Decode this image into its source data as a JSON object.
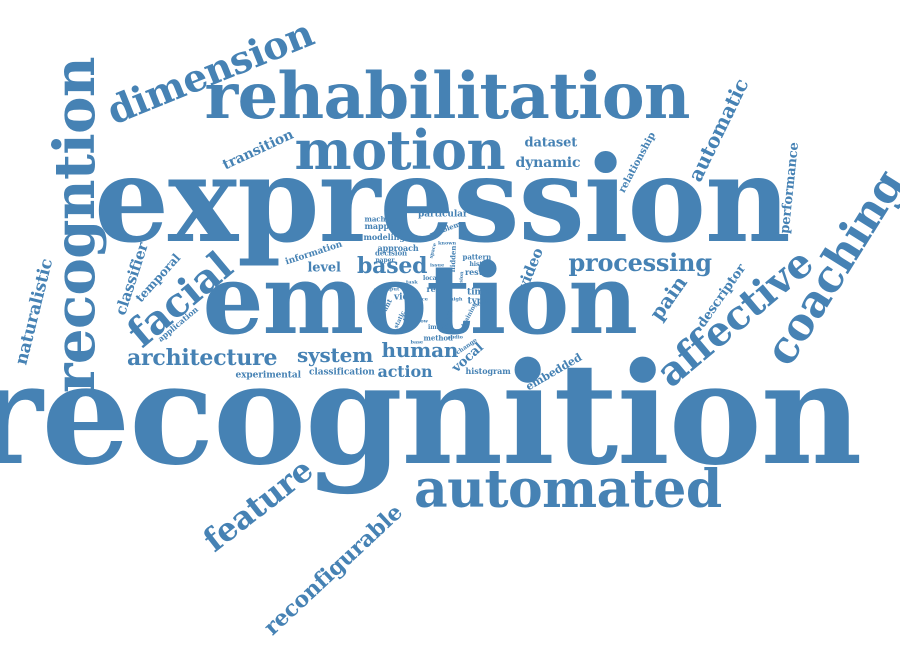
{
  "color": "#4682b4",
  "words": [
    {
      "text": "recognition"
    },
    {
      "text": "expression"
    },
    {
      "text": "emotion"
    },
    {
      "text": "rehabilitation"
    },
    {
      "text": "automated"
    },
    {
      "text": "motion"
    },
    {
      "text": "recogntion"
    },
    {
      "text": "coaching"
    },
    {
      "text": "affective"
    },
    {
      "text": "dimension"
    },
    {
      "text": "facial"
    },
    {
      "text": "feature"
    },
    {
      "text": "reconfigurable"
    },
    {
      "text": "processing"
    },
    {
      "text": "architecture"
    },
    {
      "text": "human"
    },
    {
      "text": "system"
    },
    {
      "text": "based"
    },
    {
      "text": "automatic"
    },
    {
      "text": "pain"
    },
    {
      "text": "action"
    },
    {
      "text": "naturalistic"
    },
    {
      "text": "classifier"
    },
    {
      "text": "dynamic"
    },
    {
      "text": "video"
    },
    {
      "text": "descriptor"
    },
    {
      "text": "performance"
    },
    {
      "text": "transition"
    },
    {
      "text": "dataset"
    },
    {
      "text": "temporal"
    },
    {
      "text": "vocal"
    },
    {
      "text": "level"
    },
    {
      "text": "embedded"
    },
    {
      "text": "relationship"
    },
    {
      "text": "classification"
    },
    {
      "text": "experimental"
    },
    {
      "text": "application"
    },
    {
      "text": "information"
    },
    {
      "text": "particular"
    },
    {
      "text": "mapping"
    },
    {
      "text": "modeling"
    },
    {
      "text": "machine"
    },
    {
      "text": "approach"
    },
    {
      "text": "decision"
    },
    {
      "text": "problem"
    },
    {
      "text": "histogram"
    },
    {
      "text": "result"
    },
    {
      "text": "pattern"
    },
    {
      "text": "time"
    },
    {
      "text": "type"
    },
    {
      "text": "real"
    },
    {
      "text": "view"
    },
    {
      "text": "method"
    },
    {
      "text": "account"
    },
    {
      "text": "history"
    },
    {
      "text": "change"
    },
    {
      "text": "paper"
    },
    {
      "text": "hidden"
    },
    {
      "text": "training"
    },
    {
      "text": "hmm"
    },
    {
      "text": "local"
    },
    {
      "text": "image"
    },
    {
      "text": "static"
    },
    {
      "text": "state"
    },
    {
      "text": "model"
    },
    {
      "text": "issue"
    },
    {
      "text": "space"
    },
    {
      "text": "face"
    },
    {
      "text": "task"
    },
    {
      "text": "fusion"
    },
    {
      "text": "audio"
    },
    {
      "text": "input"
    },
    {
      "text": "known"
    },
    {
      "text": "low"
    },
    {
      "text": "high"
    },
    {
      "text": "base"
    }
  ]
}
